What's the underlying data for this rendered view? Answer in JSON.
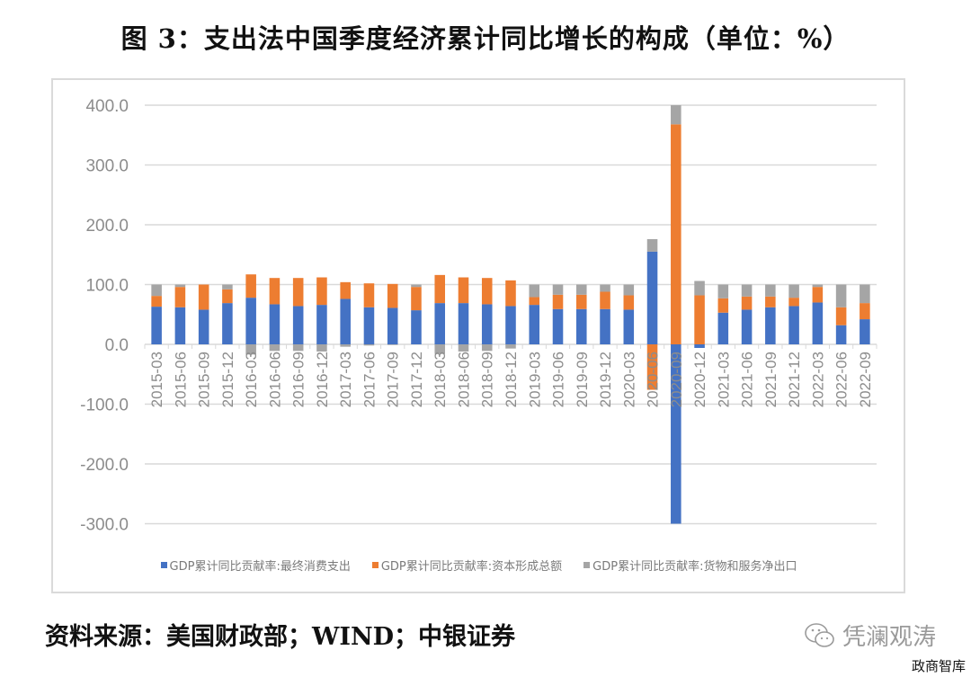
{
  "figure": {
    "title": "图 3：支出法中国季度经济累计同比增长的构成（单位：%）",
    "source": "资料来源：美国财政部；WIND；中银证券",
    "watermark": "凭澜观涛",
    "corner_mark": "政商智库"
  },
  "legend": [
    {
      "label": "GDP累计同比贡献率:最终消费支出",
      "color": "#4472c4"
    },
    {
      "label": "GDP累计同比贡献率:资本形成总额",
      "color": "#ed7d31"
    },
    {
      "label": "GDP累计同比贡献率:货物和服务净出口",
      "color": "#a5a5a5"
    }
  ],
  "chart_data": {
    "type": "bar",
    "stacked": true,
    "title": "支出法中国季度经济累计同比增长的构成（单位：%）",
    "xlabel": "",
    "ylabel": "",
    "ylim": [
      -300,
      400
    ],
    "yticks": [
      "400.0",
      "300.0",
      "200.0",
      "100.0",
      "0.0",
      "-100.0",
      "-200.0",
      "-300.0"
    ],
    "grid": true,
    "legend_position": "bottom",
    "categories": [
      "2015-03",
      "2015-06",
      "2015-09",
      "2015-12",
      "2016-03",
      "2016-06",
      "2016-09",
      "2016-12",
      "2017-03",
      "2017-06",
      "2017-09",
      "2017-12",
      "2018-03",
      "2018-06",
      "2018-09",
      "2018-12",
      "2019-03",
      "2019-06",
      "2019-09",
      "2019-12",
      "2020-03",
      "2020-06",
      "2020-09",
      "2020-12",
      "2021-03",
      "2021-06",
      "2021-09",
      "2021-12",
      "2022-03",
      "2022-06",
      "2022-09"
    ],
    "series": [
      {
        "name": "GDP累计同比贡献率:最终消费支出",
        "color": "#4472c4",
        "values": [
          63,
          62,
          58,
          69,
          78,
          67,
          64,
          66,
          76,
          62,
          61,
          57,
          69,
          69,
          67,
          64,
          66,
          59,
          59,
          59,
          58,
          155,
          -300,
          -6,
          53,
          58,
          62,
          64,
          70,
          32,
          42
        ]
      },
      {
        "name": "GDP累计同比贡献率:资本形成总额",
        "color": "#ed7d31",
        "values": [
          18,
          34,
          42,
          23,
          39,
          44,
          47,
          46,
          28,
          40,
          40,
          39,
          47,
          43,
          44,
          43,
          13,
          24,
          24,
          29,
          24,
          -76,
          368,
          82,
          24,
          22,
          18,
          14,
          26,
          30,
          27
        ]
      },
      {
        "name": "GDP累计同比贡献率:货物和服务净出口",
        "color": "#a5a5a5",
        "values": [
          19,
          4,
          0,
          8,
          -17,
          -11,
          -11,
          -12,
          -4,
          -2,
          -1,
          4,
          -16,
          -12,
          -11,
          -7,
          21,
          17,
          17,
          12,
          18,
          21,
          32,
          24,
          23,
          20,
          20,
          22,
          4,
          38,
          31
        ]
      }
    ]
  }
}
